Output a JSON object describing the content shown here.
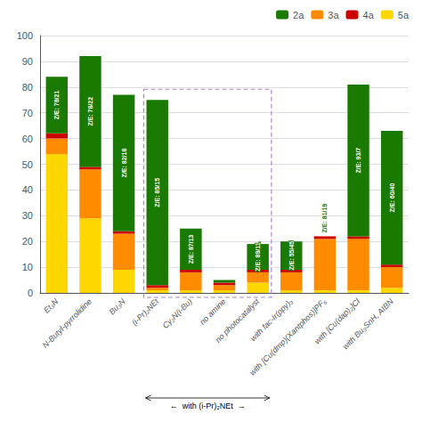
{
  "chart_data": {
    "type": "bar",
    "stacked": true,
    "categories": [
      "Et₃N",
      "N-Butyl-pyrrolidine",
      "Bu₃N",
      "(i-Pr)₂NEt",
      "Cy₂N(i-Bu)",
      "no amine",
      "no photocatalyst",
      "with fac-Ir(ppy)₃",
      "with [Cu(dmp)(Xantphos)]PF₆",
      "with [Cu(dap)₂]Cl",
      "with Bu₃SnH, AIBN"
    ],
    "series": [
      {
        "name": "5a",
        "color": "#FFD700",
        "values": [
          54,
          29,
          9,
          1,
          1,
          1,
          4,
          1,
          1,
          1,
          2
        ]
      },
      {
        "name": "3a",
        "color": "#FF8C00",
        "values": [
          6,
          19,
          14,
          1,
          7,
          2,
          4,
          7,
          20,
          20,
          8
        ]
      },
      {
        "name": "4a",
        "color": "#CC0000",
        "values": [
          2,
          1,
          1,
          1,
          1,
          1,
          1,
          1,
          1,
          1,
          1
        ]
      },
      {
        "name": "2a",
        "color": "#1A7A00",
        "values": [
          22,
          43,
          53,
          72,
          16,
          1,
          10,
          11,
          0,
          59,
          52
        ],
        "annotations": [
          "Z/E: 79/21",
          "Z/E: 78/22",
          "Z/E: 82/18",
          "Z/E: 85/15",
          "Z/E: 87/13",
          null,
          "Z/E: 89/11",
          "Z/E: 55/45",
          "Z/E: 81/19",
          "Z/E: 93/7",
          "Z/E: 60/40"
        ]
      }
    ],
    "ylim": [
      0,
      100
    ],
    "yticks": [
      0,
      10,
      20,
      30,
      40,
      50,
      60,
      70,
      80,
      90,
      100
    ],
    "grid": true,
    "legend": "upper right",
    "annotations": [
      {
        "text": "←  with (i-Pr)₂NEt  →",
        "from": "(i-Pr)₂NEt",
        "to": "no photocatalyst",
        "color": "#AA88CC"
      }
    ]
  }
}
